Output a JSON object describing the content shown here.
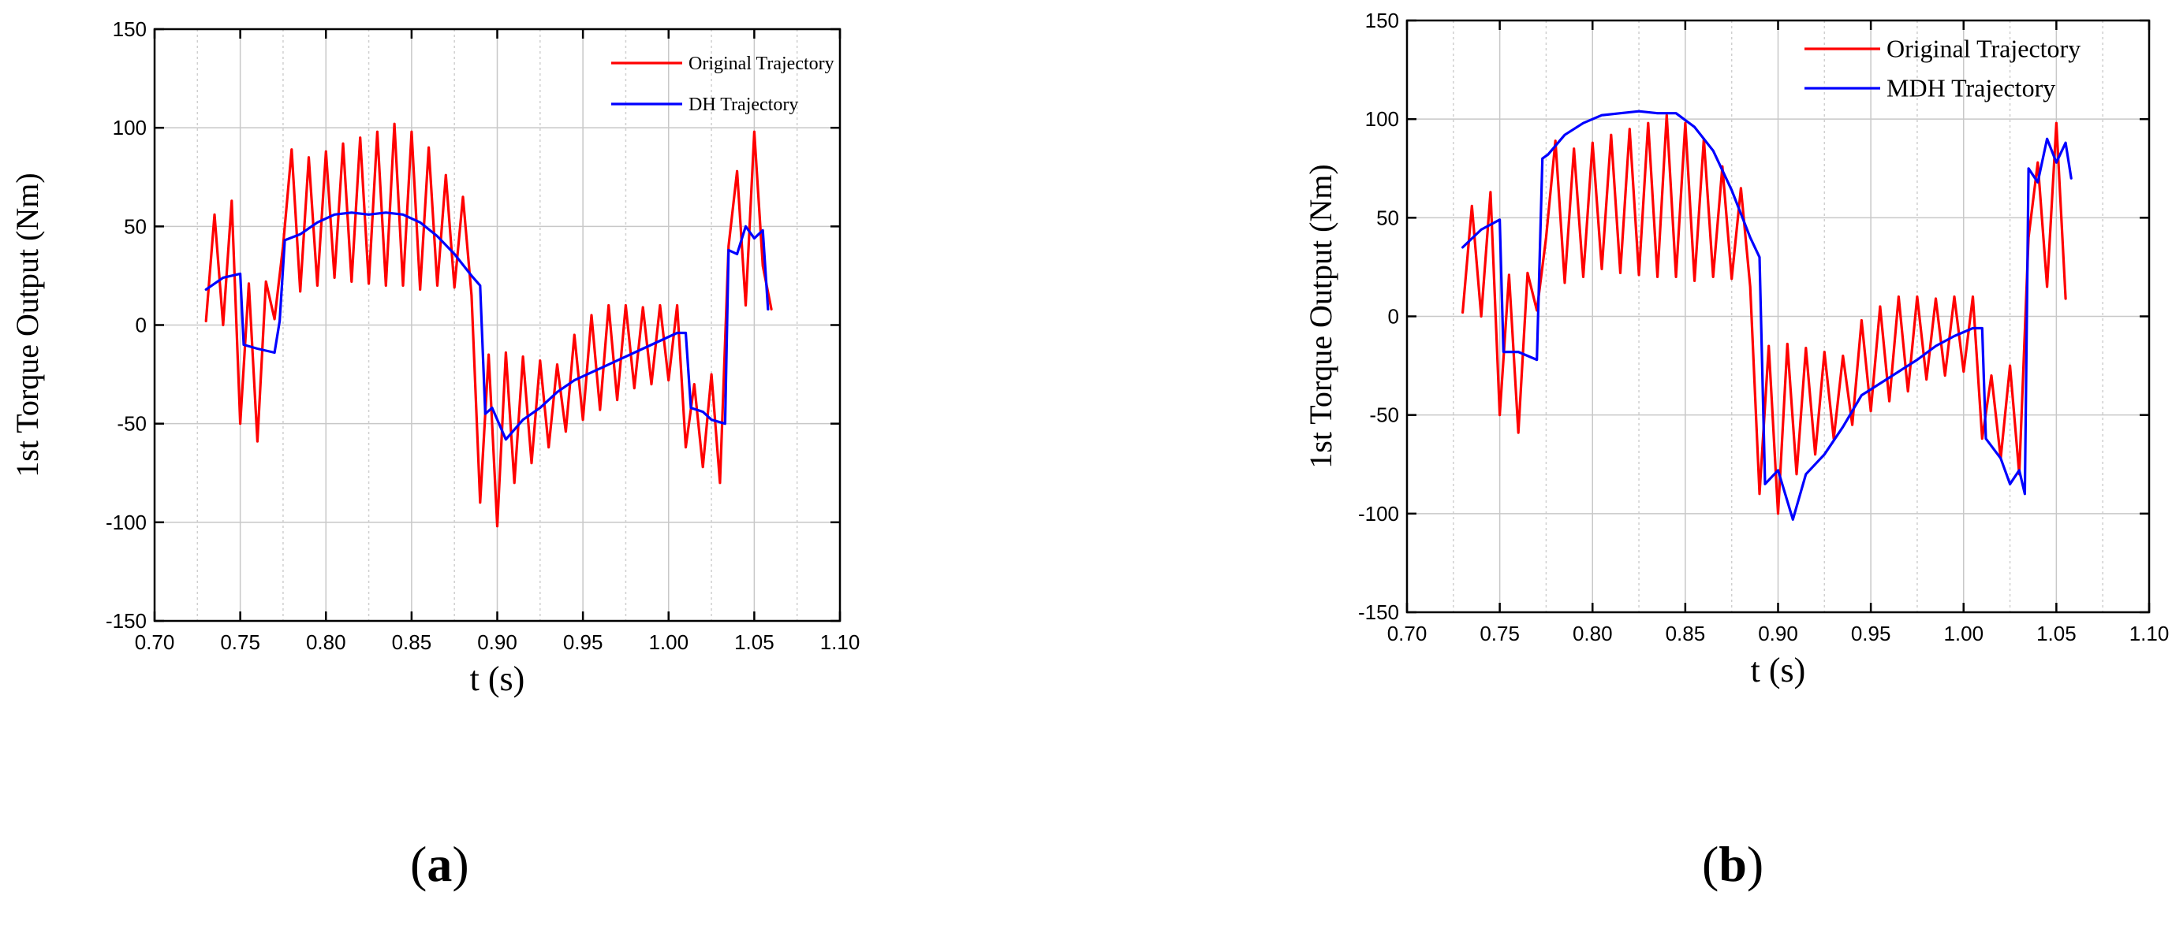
{
  "chart_data": [
    {
      "type": "line",
      "panel_label": "a",
      "xlabel": "t (s)",
      "ylabel": "1st Torque Output (Nm)",
      "xlim": [
        0.7,
        1.1
      ],
      "ylim": [
        -150,
        150
      ],
      "xticks": [
        0.7,
        0.75,
        0.8,
        0.85,
        0.9,
        0.95,
        1.0,
        1.05,
        1.1
      ],
      "xtick_labels": [
        "0.70",
        "0.75",
        "0.80",
        "0.85",
        "0.90",
        "0.95",
        "1.00",
        "1.05",
        "1.10"
      ],
      "yticks": [
        -150,
        -100,
        -50,
        0,
        50,
        100,
        150
      ],
      "ytick_labels": [
        "-150",
        "-100",
        "-50",
        "0",
        "50",
        "100",
        "150"
      ],
      "grid": true,
      "legend_position": "top-right",
      "series": [
        {
          "name": "Original Trajectory",
          "color": "#ff0000",
          "x": [
            0.73,
            0.735,
            0.74,
            0.745,
            0.75,
            0.755,
            0.76,
            0.765,
            0.77,
            0.775,
            0.78,
            0.785,
            0.79,
            0.795,
            0.8,
            0.805,
            0.81,
            0.815,
            0.82,
            0.825,
            0.83,
            0.835,
            0.84,
            0.845,
            0.85,
            0.855,
            0.86,
            0.865,
            0.87,
            0.875,
            0.88,
            0.885,
            0.89,
            0.895,
            0.9,
            0.905,
            0.91,
            0.915,
            0.92,
            0.925,
            0.93,
            0.935,
            0.94,
            0.945,
            0.95,
            0.955,
            0.96,
            0.965,
            0.97,
            0.975,
            0.98,
            0.985,
            0.99,
            0.995,
            1.0,
            1.005,
            1.01,
            1.015,
            1.02,
            1.025,
            1.03,
            1.035,
            1.04,
            1.045,
            1.05,
            1.055,
            1.06
          ],
          "y": [
            2,
            56,
            0,
            63,
            -50,
            21,
            -59,
            22,
            3,
            40,
            89,
            17,
            85,
            20,
            88,
            24,
            92,
            22,
            95,
            21,
            98,
            20,
            102,
            20,
            98,
            18,
            90,
            20,
            76,
            19,
            65,
            15,
            -90,
            -15,
            -102,
            -14,
            -80,
            -16,
            -70,
            -18,
            -62,
            -20,
            -54,
            -5,
            -48,
            5,
            -43,
            10,
            -38,
            10,
            -32,
            9,
            -30,
            10,
            -28,
            10,
            -62,
            -30,
            -72,
            -25,
            -80,
            40,
            78,
            10,
            98,
            30,
            8
          ]
        },
        {
          "name": "DH Trajectory",
          "color": "#0000ff",
          "x": [
            0.73,
            0.74,
            0.75,
            0.752,
            0.76,
            0.77,
            0.773,
            0.776,
            0.785,
            0.795,
            0.805,
            0.815,
            0.825,
            0.835,
            0.845,
            0.855,
            0.865,
            0.875,
            0.885,
            0.89,
            0.893,
            0.897,
            0.905,
            0.915,
            0.925,
            0.935,
            0.945,
            0.955,
            0.965,
            0.975,
            0.985,
            0.995,
            1.005,
            1.01,
            1.013,
            1.02,
            1.025,
            1.033,
            1.035,
            1.04,
            1.045,
            1.05,
            1.055,
            1.058
          ],
          "y": [
            18,
            24,
            26,
            -10,
            -12,
            -14,
            2,
            43,
            46,
            52,
            56,
            57,
            56,
            57,
            56,
            52,
            45,
            36,
            25,
            20,
            -45,
            -42,
            -58,
            -48,
            -42,
            -34,
            -28,
            -24,
            -20,
            -16,
            -12,
            -8,
            -4,
            -4,
            -42,
            -44,
            -48,
            -50,
            38,
            36,
            50,
            44,
            48,
            8
          ]
        }
      ]
    },
    {
      "type": "line",
      "panel_label": "b",
      "xlabel": "t (s)",
      "ylabel": "1st Torque Output (Nm)",
      "xlim": [
        0.7,
        1.1
      ],
      "ylim": [
        -150,
        150
      ],
      "xticks": [
        0.7,
        0.75,
        0.8,
        0.85,
        0.9,
        0.95,
        1.0,
        1.05,
        1.1
      ],
      "xtick_labels": [
        "0.70",
        "0.75",
        "0.80",
        "0.85",
        "0.90",
        "0.95",
        "1.00",
        "1.05",
        "1.10"
      ],
      "yticks": [
        -150,
        -100,
        -50,
        0,
        50,
        100,
        150
      ],
      "ytick_labels": [
        "-150",
        "-100",
        "-50",
        "0",
        "50",
        "100",
        "150"
      ],
      "grid": true,
      "legend_position": "top-right",
      "series": [
        {
          "name": "Original Trajectory",
          "color": "#ff0000",
          "x": [
            0.73,
            0.735,
            0.74,
            0.745,
            0.75,
            0.755,
            0.76,
            0.765,
            0.77,
            0.775,
            0.78,
            0.785,
            0.79,
            0.795,
            0.8,
            0.805,
            0.81,
            0.815,
            0.82,
            0.825,
            0.83,
            0.835,
            0.84,
            0.845,
            0.85,
            0.855,
            0.86,
            0.865,
            0.87,
            0.875,
            0.88,
            0.885,
            0.89,
            0.895,
            0.9,
            0.905,
            0.91,
            0.915,
            0.92,
            0.925,
            0.93,
            0.935,
            0.94,
            0.945,
            0.95,
            0.955,
            0.96,
            0.965,
            0.97,
            0.975,
            0.98,
            0.985,
            0.99,
            0.995,
            1.0,
            1.005,
            1.01,
            1.015,
            1.02,
            1.025,
            1.03,
            1.035,
            1.04,
            1.045,
            1.05,
            1.055
          ],
          "y": [
            2,
            56,
            0,
            63,
            -50,
            21,
            -59,
            22,
            3,
            40,
            89,
            17,
            85,
            20,
            88,
            24,
            92,
            22,
            95,
            21,
            98,
            20,
            102,
            20,
            98,
            18,
            90,
            20,
            76,
            19,
            65,
            15,
            -90,
            -15,
            -100,
            -14,
            -80,
            -16,
            -70,
            -18,
            -62,
            -20,
            -55,
            -2,
            -48,
            5,
            -43,
            10,
            -38,
            10,
            -32,
            9,
            -30,
            10,
            -28,
            10,
            -62,
            -30,
            -72,
            -25,
            -80,
            40,
            78,
            15,
            98,
            9
          ]
        },
        {
          "name": "MDH Trajectory",
          "color": "#0000ff",
          "x": [
            0.73,
            0.74,
            0.75,
            0.752,
            0.76,
            0.77,
            0.773,
            0.776,
            0.785,
            0.795,
            0.805,
            0.815,
            0.825,
            0.835,
            0.845,
            0.855,
            0.865,
            0.875,
            0.885,
            0.89,
            0.893,
            0.9,
            0.908,
            0.915,
            0.925,
            0.935,
            0.945,
            0.955,
            0.965,
            0.975,
            0.985,
            0.995,
            1.005,
            1.01,
            1.012,
            1.02,
            1.025,
            1.03,
            1.033,
            1.035,
            1.04,
            1.045,
            1.05,
            1.055,
            1.058
          ],
          "y": [
            35,
            44,
            49,
            -18,
            -18,
            -22,
            80,
            82,
            92,
            98,
            102,
            103,
            104,
            103,
            103,
            96,
            84,
            64,
            40,
            30,
            -85,
            -78,
            -103,
            -80,
            -70,
            -56,
            -40,
            -34,
            -28,
            -22,
            -15,
            -10,
            -6,
            -6,
            -62,
            -72,
            -85,
            -78,
            -90,
            75,
            68,
            90,
            78,
            88,
            70
          ]
        }
      ]
    }
  ]
}
